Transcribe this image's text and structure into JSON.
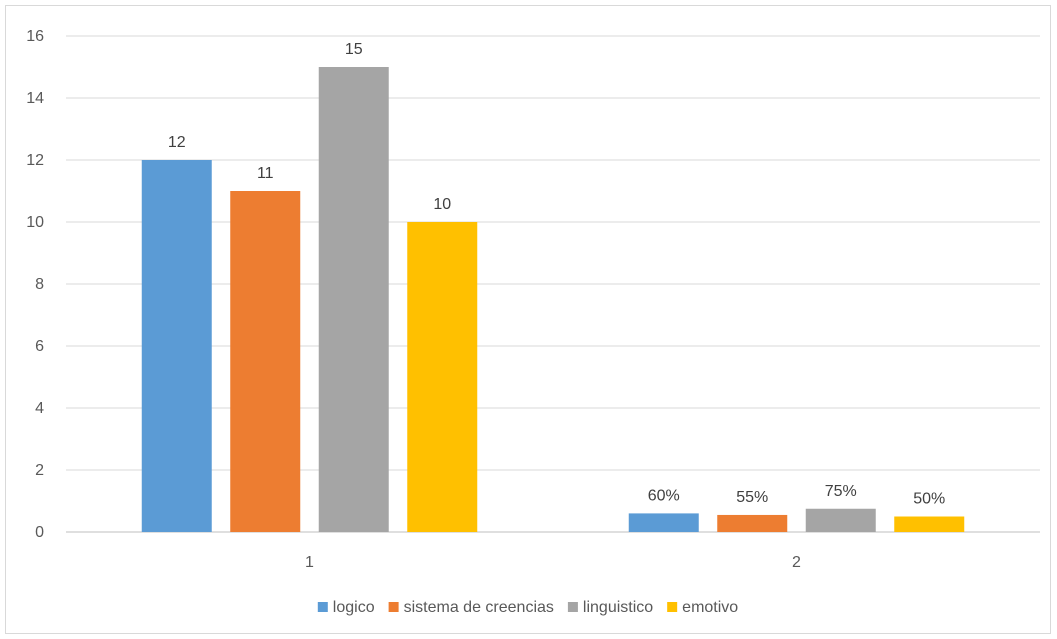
{
  "chart_data": {
    "type": "bar",
    "categories": [
      "1",
      "2"
    ],
    "ylim": [
      0,
      16
    ],
    "yticks": [
      0,
      2,
      4,
      6,
      8,
      10,
      12,
      14,
      16
    ],
    "grid": true,
    "legend_position": "bottom",
    "title": "",
    "xlabel": "",
    "ylabel": "",
    "series": [
      {
        "name": "logico",
        "color": "#5B9BD5",
        "values": [
          12,
          0.6
        ],
        "labels": [
          "12",
          "60%"
        ]
      },
      {
        "name": "sistema de creencias",
        "color": "#ED7D31",
        "values": [
          11,
          0.55
        ],
        "labels": [
          "11",
          "55%"
        ]
      },
      {
        "name": "linguistico",
        "color": "#A5A5A5",
        "values": [
          15,
          0.75
        ],
        "labels": [
          "15",
          "75%"
        ]
      },
      {
        "name": "emotivo",
        "color": "#FFC000",
        "values": [
          10,
          0.5
        ],
        "labels": [
          "10",
          "50%"
        ]
      }
    ]
  }
}
